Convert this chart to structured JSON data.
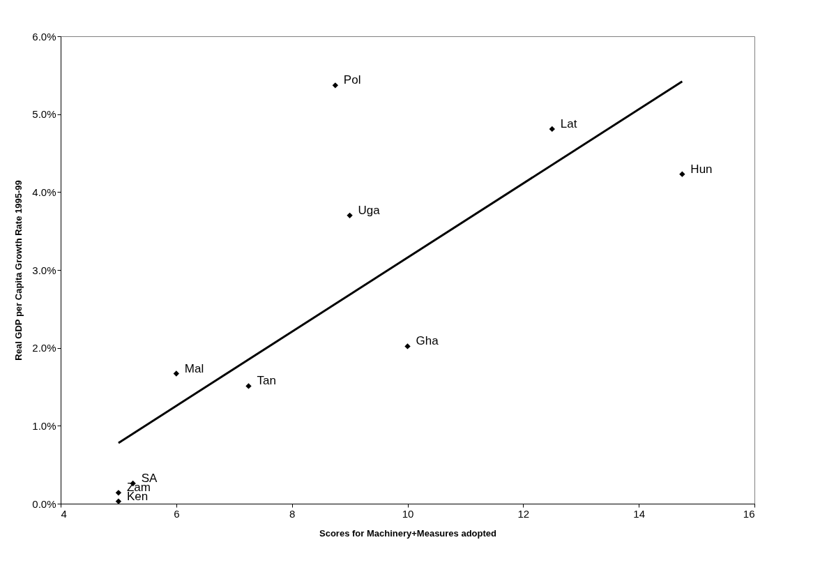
{
  "chart_data": {
    "type": "scatter",
    "xlabel": "Scores for Machinery+Measures adopted",
    "ylabel": "Real GDP per Capita Growth Rate 1995-99",
    "series": [
      {
        "color": "#000000",
        "x": [
          8.75,
          12.5,
          14.75,
          9,
          10,
          6,
          7.25,
          5.25,
          5,
          5
        ],
        "values": [
          5.37,
          4.81,
          4.23,
          3.7,
          2.02,
          1.67,
          1.51,
          0.26,
          0.14,
          0.03
        ]
      },
      {
        "type": "line",
        "color": "#000000",
        "line_style": "solid",
        "marker": "none",
        "x": [
          5,
          14.75
        ],
        "values": [
          0.78,
          5.42
        ]
      }
    ],
    "annotations": [
      {
        "text": "Pol",
        "x": 8.75,
        "y": 5.37
      },
      {
        "text": "Lat",
        "x": 12.5,
        "y": 4.81
      },
      {
        "text": "Hun",
        "x": 14.75,
        "y": 4.23
      },
      {
        "text": "Uga",
        "x": 9,
        "y": 3.7
      },
      {
        "text": "Gha",
        "x": 10,
        "y": 2.02
      },
      {
        "text": "Mal",
        "x": 6,
        "y": 1.67
      },
      {
        "text": "Tan",
        "x": 7.25,
        "y": 1.51
      },
      {
        "text": "SA",
        "x": 5.25,
        "y": 0.26
      },
      {
        "text": "Zam",
        "x": 5,
        "y": 0.14
      },
      {
        "text": "Ken",
        "x": 5,
        "y": 0.03
      }
    ],
    "xlim": [
      4,
      16
    ],
    "xticks": [
      4,
      6,
      8,
      10,
      12,
      14,
      16
    ],
    "ylim": [
      0,
      6
    ],
    "yticks": [
      {
        "value": 0,
        "label": "0.0%"
      },
      {
        "value": 1,
        "label": "1.0%"
      },
      {
        "value": 2,
        "label": "2.0%"
      },
      {
        "value": 3,
        "label": "3.0%"
      },
      {
        "value": 4,
        "label": "4.0%"
      },
      {
        "value": 5,
        "label": "5.0%"
      },
      {
        "value": 6,
        "label": "6.0%"
      }
    ],
    "grid": false,
    "marker": "diamond"
  }
}
